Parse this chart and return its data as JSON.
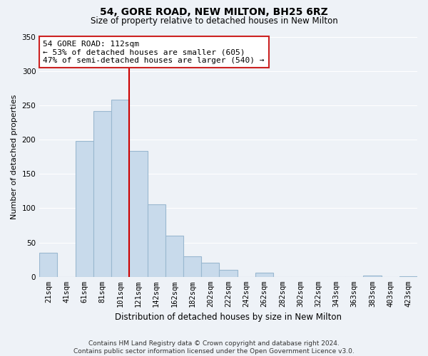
{
  "title": "54, GORE ROAD, NEW MILTON, BH25 6RZ",
  "subtitle": "Size of property relative to detached houses in New Milton",
  "xlabel": "Distribution of detached houses by size in New Milton",
  "ylabel": "Number of detached properties",
  "bar_color": "#c8daeb",
  "bar_edge_color": "#9ab8d0",
  "categories": [
    "21sqm",
    "41sqm",
    "61sqm",
    "81sqm",
    "101sqm",
    "121sqm",
    "142sqm",
    "162sqm",
    "182sqm",
    "202sqm",
    "222sqm",
    "242sqm",
    "262sqm",
    "282sqm",
    "302sqm",
    "322sqm",
    "343sqm",
    "363sqm",
    "383sqm",
    "403sqm",
    "423sqm"
  ],
  "values": [
    35,
    0,
    198,
    242,
    258,
    183,
    106,
    60,
    30,
    21,
    10,
    0,
    6,
    0,
    0,
    0,
    0,
    0,
    2,
    0,
    1
  ],
  "vline_x_idx": 5,
  "vline_color": "#cc0000",
  "annotation_line1": "54 GORE ROAD: 112sqm",
  "annotation_line2": "← 53% of detached houses are smaller (605)",
  "annotation_line3": "47% of semi-detached houses are larger (540) →",
  "annotation_box_color": "white",
  "annotation_box_edge": "#cc2222",
  "ylim": [
    0,
    350
  ],
  "yticks": [
    0,
    50,
    100,
    150,
    200,
    250,
    300,
    350
  ],
  "footnote": "Contains HM Land Registry data © Crown copyright and database right 2024.\nContains public sector information licensed under the Open Government Licence v3.0.",
  "background_color": "#eef2f7",
  "grid_color": "#ffffff",
  "title_fontsize": 10,
  "subtitle_fontsize": 8.5,
  "ylabel_fontsize": 8,
  "xlabel_fontsize": 8.5,
  "tick_fontsize": 7.5,
  "footnote_fontsize": 6.5
}
